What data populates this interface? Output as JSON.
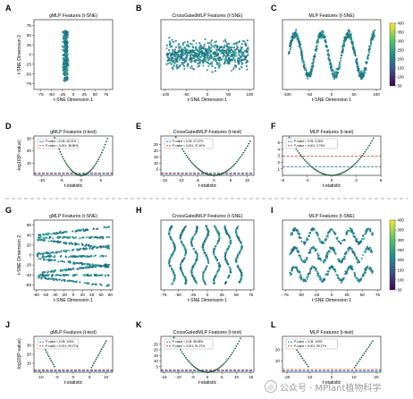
{
  "chart_data": [
    {
      "panel": "A",
      "type": "scatter",
      "title": "gMLP Features (t-SNE)",
      "xlabel": "t-SNE Dimension 1",
      "ylabel": "t-SNE Dimension 2",
      "xlim": [
        -90,
        90
      ],
      "ylim": [
        -90,
        90
      ],
      "xticks": [
        -75,
        -50,
        -25,
        0,
        25,
        50,
        75
      ],
      "yticks": [
        75,
        50,
        25,
        0,
        -25,
        -50,
        -75
      ],
      "cluster_shape": "dispersed-clusters",
      "seed": 11,
      "n_points": 420
    },
    {
      "panel": "B",
      "type": "scatter",
      "title": "CrossGatedMLP Features (t-SNE)",
      "xlabel": "t-SNE Dimension 1",
      "ylabel": "",
      "xlim": [
        -110,
        110
      ],
      "ylim": [
        -30,
        30
      ],
      "xticks": [
        -100,
        -50,
        0,
        50,
        100
      ],
      "yticks": [],
      "cluster_shape": "dense-band",
      "seed": 23,
      "n_points": 700
    },
    {
      "panel": "C",
      "type": "scatter",
      "title": "MLP Features (t-SNE)",
      "xlabel": "t-SNE Dimension 1",
      "ylabel": "",
      "xlim": [
        -110,
        110
      ],
      "ylim": [
        -35,
        35
      ],
      "xticks": [
        -100,
        -50,
        0,
        50,
        100
      ],
      "yticks": [],
      "cluster_shape": "wave-ribbon",
      "seed": 37,
      "n_points": 600
    },
    {
      "panel": "D",
      "type": "scatter",
      "title": "gMLP Features (t-test)",
      "xlabel": "t-statistic",
      "ylabel": "-log10(P-value)",
      "xlim": [
        -12,
        8
      ],
      "ylim": [
        0,
        32
      ],
      "xticks": [
        -10,
        -5,
        0,
        5
      ],
      "yticks": [
        30,
        20,
        10
      ],
      "thresholds": [
        1.3,
        2.0
      ],
      "legend": [
        "P-value < 0.05: 45.21%",
        "P-value < 0.001: 38.96%"
      ],
      "legend_position": "top-left",
      "curve_scale": 0.28
    },
    {
      "panel": "E",
      "type": "scatter",
      "title": "CrossGatedMLP Features (t-test)",
      "xlabel": "t-statistic",
      "ylabel": "",
      "xlim": [
        -16,
        12
      ],
      "ylim": [
        0,
        32
      ],
      "xticks": [
        -15,
        -10,
        -5,
        0,
        5,
        10
      ],
      "yticks": [
        25,
        20,
        15,
        10,
        5
      ],
      "thresholds": [
        1.3,
        2.0
      ],
      "legend": [
        "P-value < 0.05: 47.47%",
        "P-value < 0.001: 37.40%"
      ],
      "legend_position": "top-left",
      "curve_scale": 0.13
    },
    {
      "panel": "F",
      "type": "scatter",
      "title": "MLP Features (t-test)",
      "xlabel": "t-statistic",
      "ylabel": "",
      "xlim": [
        -6,
        6
      ],
      "ylim": [
        0,
        6
      ],
      "xticks": [
        -6,
        -3,
        0,
        3,
        6
      ],
      "yticks": [
        5,
        4,
        3,
        2,
        1
      ],
      "thresholds": [
        1.3,
        2.9
      ],
      "legend": [
        "P-value < 0.05: 3.36%",
        "P-value < 0.001: 0.76%"
      ],
      "legend_position": "top-left",
      "curve_scale": 0.24
    },
    {
      "panel": "G",
      "type": "scatter",
      "title": "gMLP Features (t-SNE)",
      "xlabel": "t-SNE Dimension 1",
      "ylabel": "t-SNE Dimension 2",
      "xlim": [
        -85,
        85
      ],
      "ylim": [
        -70,
        70
      ],
      "xticks": [
        -80,
        -60,
        -40,
        -20,
        0,
        20,
        40,
        60,
        80
      ],
      "yticks": [
        60,
        40,
        20,
        0,
        -20,
        -40,
        -60
      ],
      "cluster_shape": "streaks",
      "seed": 53,
      "n_points": 650
    },
    {
      "panel": "H",
      "type": "scatter",
      "title": "CrossGatedMLP Features (t-SNE)",
      "xlabel": "t-SNE Dimension 1",
      "ylabel": "",
      "xlim": [
        -80,
        80
      ],
      "ylim": [
        -80,
        80
      ],
      "xticks": [
        -75,
        -50,
        -25,
        0,
        25,
        50,
        75
      ],
      "yticks": [],
      "cluster_shape": "vertical-worms",
      "seed": 67,
      "n_points": 650
    },
    {
      "panel": "I",
      "type": "scatter",
      "title": "MLP Features (t-SNE)",
      "xlabel": "t-SNE Dimension 1",
      "ylabel": "",
      "xlim": [
        -80,
        80
      ],
      "ylim": [
        -80,
        80
      ],
      "xticks": [
        -75,
        -50,
        -25,
        0,
        25,
        50,
        75
      ],
      "yticks": [],
      "cluster_shape": "serpentine",
      "seed": 71,
      "n_points": 600
    },
    {
      "panel": "J",
      "type": "scatter",
      "title": "gMLP Features (t-test)",
      "xlabel": "t-statistic",
      "ylabel": "-log10(P-value)",
      "xlim": [
        -12,
        12
      ],
      "ylim": [
        0,
        40
      ],
      "xticks": [
        -10,
        -5,
        0,
        5,
        10
      ],
      "yticks": [
        30,
        20,
        10
      ],
      "thresholds": [
        1.3,
        2.4
      ],
      "legend": [
        "P-value < 0.05: 100%",
        "P-value < 0.001: 99.27%"
      ],
      "legend_position": "top-left",
      "curve_scale": "split"
    },
    {
      "panel": "K",
      "type": "scatter",
      "title": "CrossGatedMLP Features (t-test)",
      "xlabel": "t-statistic",
      "ylabel": "",
      "xlim": [
        -16,
        16
      ],
      "ylim": [
        0,
        32
      ],
      "xticks": [
        -15,
        -10,
        -5,
        0,
        5,
        10,
        15
      ],
      "yticks": [
        25,
        20,
        15,
        10,
        5
      ],
      "thresholds": [
        1.3,
        2.0
      ],
      "legend": [
        "P-value < 0.05: 98.88%",
        "P-value < 0.001: 91.27%"
      ],
      "legend_position": "top-left",
      "curve_scale": 0.13
    },
    {
      "panel": "L",
      "type": "scatter",
      "title": "MLP Features (t-test)",
      "xlabel": "t-statistic",
      "ylabel": "",
      "xlim": [
        -22,
        22
      ],
      "ylim": [
        0,
        32
      ],
      "xticks": [
        -20,
        -10,
        0,
        10,
        20
      ],
      "yticks": [
        20,
        10
      ],
      "thresholds": [
        1.3,
        2.4
      ],
      "legend": [
        "P-value < 0.05: 100%",
        "P-value < 0.001: 99.27%"
      ],
      "legend_position": "top-left",
      "curve_scale": "split"
    }
  ],
  "panel_labels": [
    "A",
    "B",
    "C",
    "D",
    "E",
    "F",
    "G",
    "H",
    "I",
    "J",
    "K",
    "L"
  ],
  "colorbars": [
    {
      "ticks": [
        400,
        350,
        300,
        250,
        200,
        150,
        100,
        50
      ]
    },
    {
      "ticks": [
        400,
        350,
        300,
        250,
        200,
        150,
        100,
        50
      ]
    }
  ],
  "colors": {
    "scatter": "#1f6e8a",
    "scatter2": "#2aa68a",
    "volcano": "#1b5e3a",
    "line_red": "#c62828",
    "line_blue": "#1565c0",
    "divider": "#b0b0b0",
    "viridis": [
      "#fde725",
      "#5ec962",
      "#21918c",
      "#3b528b",
      "#440154"
    ]
  },
  "watermark": {
    "text": "公众号 · MPlant植物科学",
    "icon": "wechat-icon"
  }
}
